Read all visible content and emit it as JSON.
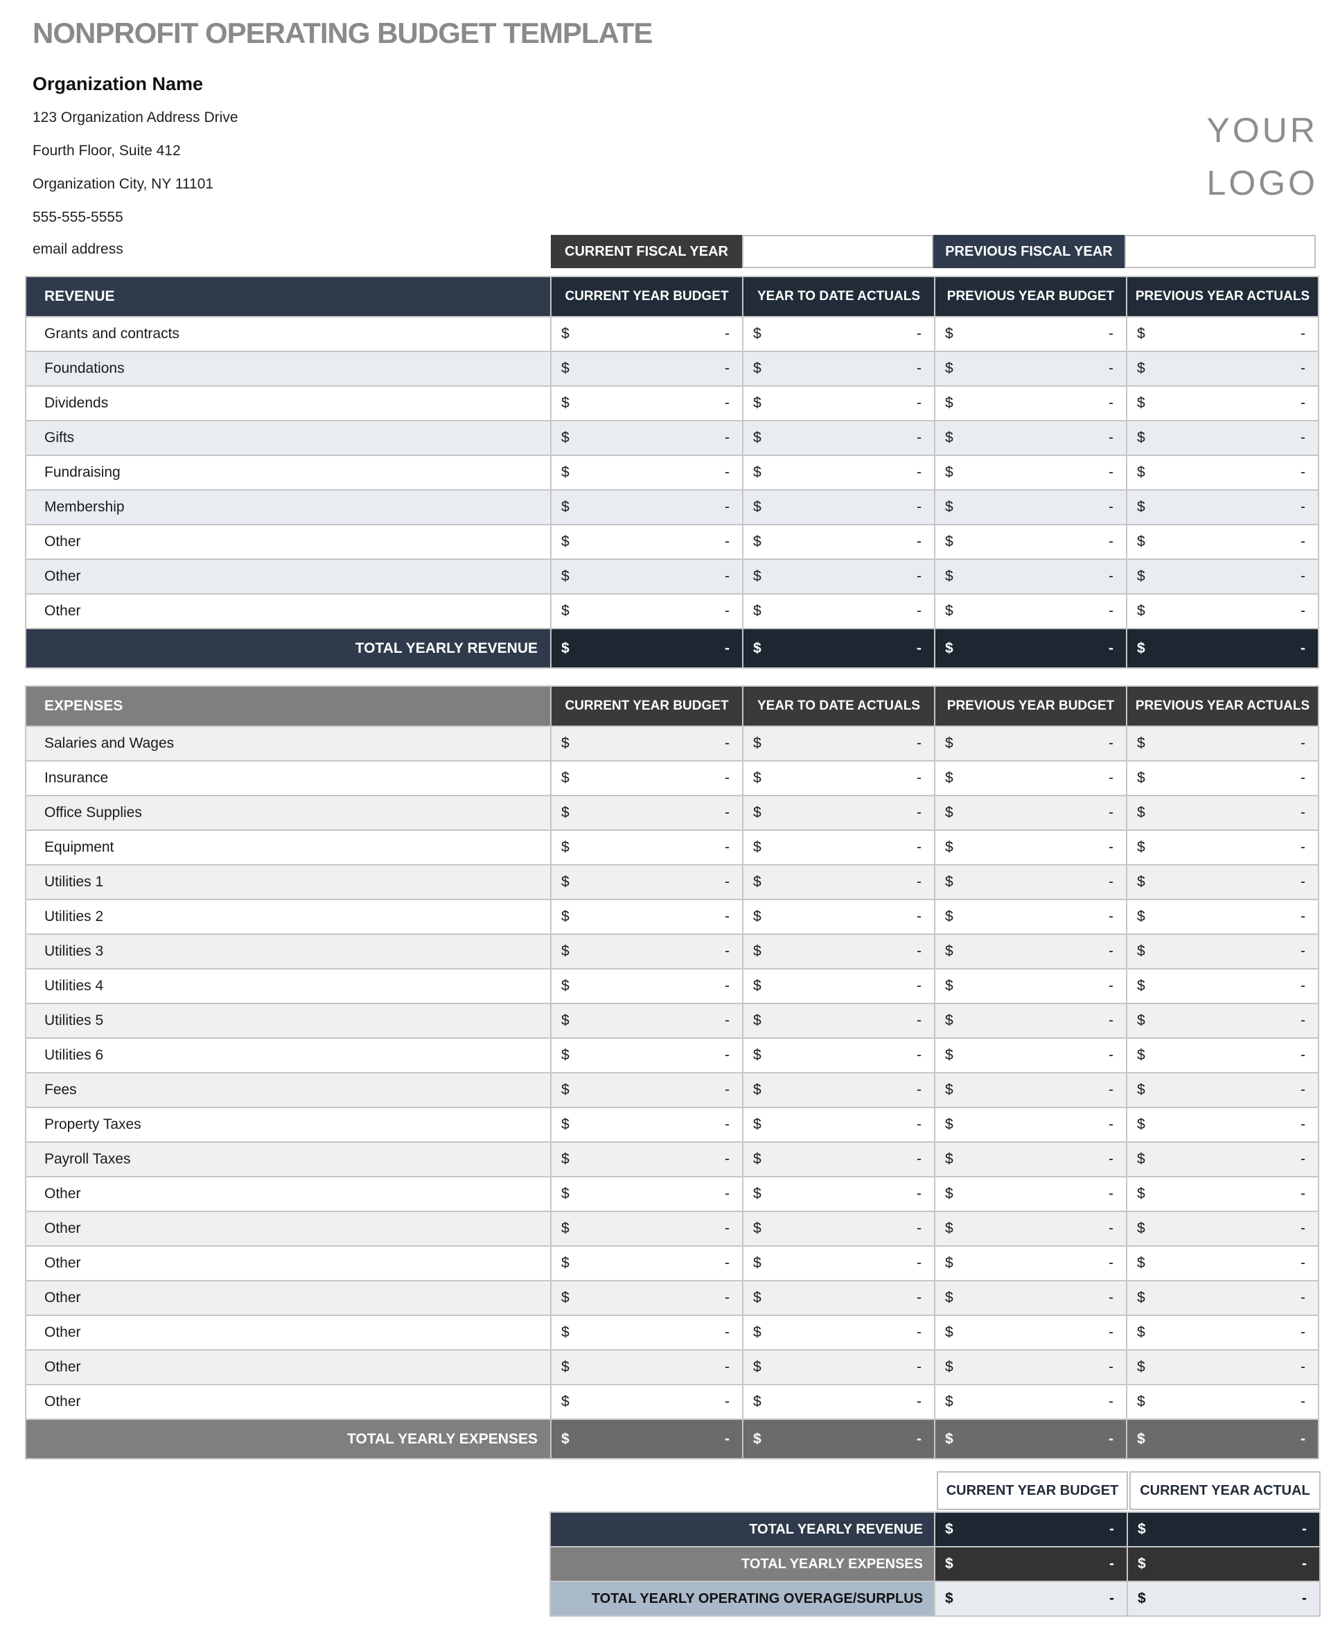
{
  "page": {
    "title": "NONPROFIT OPERATING BUDGET TEMPLATE"
  },
  "org": {
    "name": "Organization Name",
    "address1": "123 Organization Address Drive",
    "address2": "Fourth Floor, Suite 412",
    "address3": "Organization City, NY  11101",
    "phone": "555-555-5555",
    "email": "email address"
  },
  "logo": {
    "line1": "YOUR",
    "line2": "LOGO"
  },
  "fiscal": {
    "current_label": "CURRENT FISCAL YEAR",
    "current_value": "",
    "previous_label": "PREVIOUS FISCAL YEAR",
    "previous_value": ""
  },
  "columns": [
    "CURRENT YEAR BUDGET",
    "YEAR TO DATE ACTUALS",
    "PREVIOUS YEAR BUDGET",
    "PREVIOUS YEAR ACTUALS"
  ],
  "currency_symbol": "$",
  "empty_value": "-",
  "revenue": {
    "section_label": "REVENUE",
    "rows": [
      "Grants and contracts",
      "Foundations",
      "Dividends",
      "Gifts",
      "Fundraising",
      "Membership",
      "Other",
      "Other",
      "Other"
    ],
    "total_label": "TOTAL YEARLY REVENUE"
  },
  "expenses": {
    "section_label": "EXPENSES",
    "rows": [
      "Salaries and Wages",
      "Insurance",
      "Office Supplies",
      "Equipment",
      "Utilities 1",
      "Utilities 2",
      "Utilities 3",
      "Utilities 4",
      "Utilities 5",
      "Utilities 6",
      "Fees",
      "Property Taxes",
      "Payroll Taxes",
      "Other",
      "Other",
      "Other",
      "Other",
      "Other",
      "Other",
      "Other"
    ],
    "total_label": "TOTAL YEARLY EXPENSES"
  },
  "summary": {
    "columns": [
      "CURRENT YEAR BUDGET",
      "CURRENT YEAR ACTUAL"
    ],
    "rows": [
      {
        "label": "TOTAL YEARLY REVENUE",
        "style": "navy"
      },
      {
        "label": "TOTAL YEARLY EXPENSES",
        "style": "gray"
      },
      {
        "label": "TOTAL YEARLY OPERATING OVERAGE/SURPLUS",
        "style": "light"
      }
    ]
  },
  "colors": {
    "title-gray": "#8a8a8a",
    "logo-gray": "#8e8e8e",
    "charcoal": "#3a3a3a",
    "slate": "#2f3b4c",
    "navy": "#222c38",
    "navy-dark": "#1d2631",
    "gray": "#7f7f7f",
    "gray-dark": "#6b6b6b",
    "summary-dark": "#333333",
    "light-blue": "#aab9c9",
    "light-cell": "#e7ebef",
    "rev-alt": "#e9edf2",
    "exp-alt": "#f0f0f0",
    "grid": "#c6c6c6",
    "border-light": "#bfbfbf"
  }
}
